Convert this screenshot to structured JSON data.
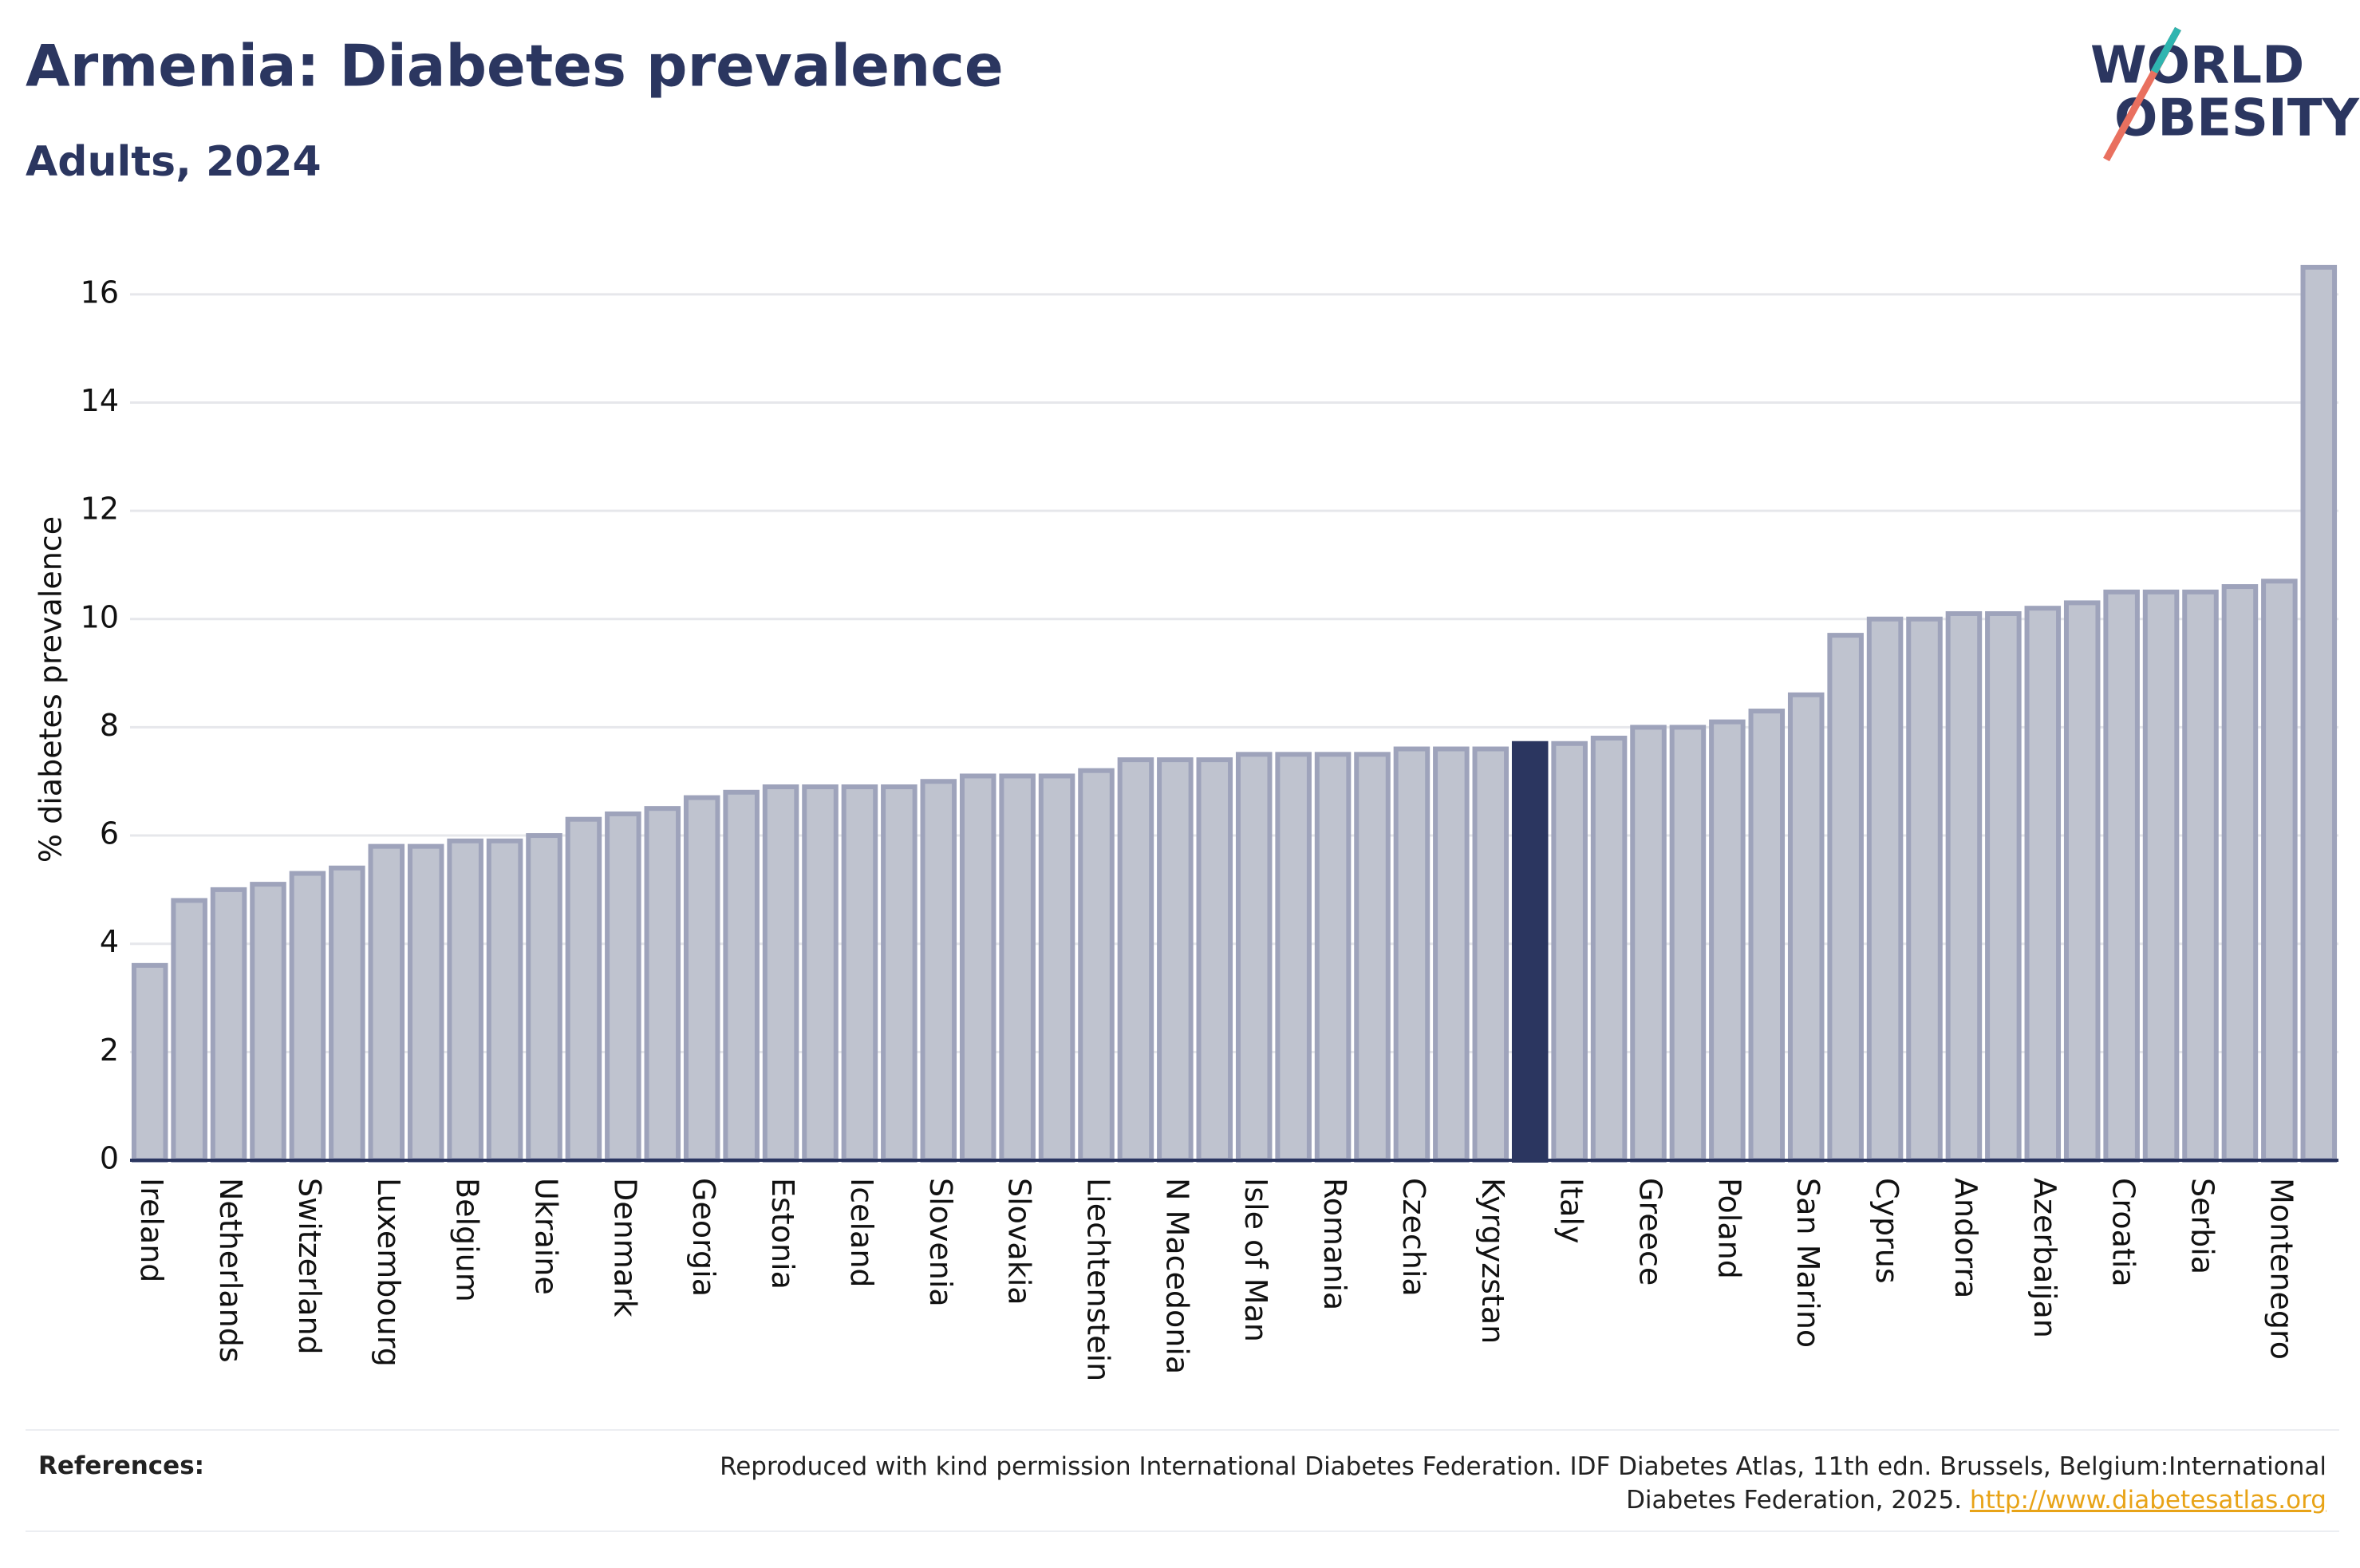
{
  "title": "Armenia: Diabetes prevalence",
  "subtitle": "Adults, 2024",
  "logo": {
    "line1": "WORLD",
    "line2": "OBESITY"
  },
  "chart_data": {
    "type": "bar",
    "y_label": "% diabetes prevalence",
    "categories": [
      "Ireland",
      null,
      "Netherlands",
      null,
      "Switzerland",
      null,
      "Luxembourg",
      null,
      "Belgium",
      null,
      "Ukraine",
      null,
      "Denmark",
      null,
      "Georgia",
      null,
      "Estonia",
      null,
      "Iceland",
      null,
      "Slovenia",
      null,
      "Slovakia",
      null,
      "Liechtenstein",
      null,
      "N Macedonia",
      null,
      "Isle of Man",
      null,
      "Romania",
      null,
      "Czechia",
      null,
      "Kyrgyzstan",
      null,
      "Italy",
      null,
      "Greece",
      null,
      "Poland",
      null,
      "San Marino",
      null,
      "Cyprus",
      null,
      "Andorra",
      null,
      "Azerbaijan",
      null,
      "Croatia",
      null,
      "Serbia",
      null,
      "Montenegro",
      null
    ],
    "values": [
      3.6,
      4.8,
      5.0,
      5.1,
      5.3,
      5.4,
      5.8,
      5.8,
      5.9,
      5.9,
      6.0,
      6.3,
      6.4,
      6.5,
      6.7,
      6.8,
      6.9,
      6.9,
      6.9,
      6.9,
      7.0,
      7.1,
      7.1,
      7.1,
      7.2,
      7.4,
      7.4,
      7.4,
      7.5,
      7.5,
      7.5,
      7.5,
      7.6,
      7.6,
      7.6,
      7.7,
      7.7,
      7.8,
      8.0,
      8.0,
      8.1,
      8.3,
      8.6,
      9.7,
      10.0,
      10.0,
      10.1,
      10.1,
      10.2,
      10.3,
      10.5,
      10.5,
      10.5,
      10.6,
      10.7,
      16.5
    ],
    "color": "#bfc3cf",
    "edge_color": "#9ea3bb",
    "highlight_index": 35,
    "highlight_color": "#2b3660",
    "ylim": [
      0,
      17
    ],
    "yticks": [
      0,
      2,
      4,
      6,
      8,
      10,
      12,
      14,
      16
    ],
    "grid": true
  },
  "references": {
    "label": "References:",
    "text": "Reproduced with kind permission International Diabetes Federation. IDF Diabetes Atlas, 11th edn. Brussels, Belgium:International Diabetes Federation, 2025.",
    "link": "http://www.diabetesatlas.org"
  }
}
